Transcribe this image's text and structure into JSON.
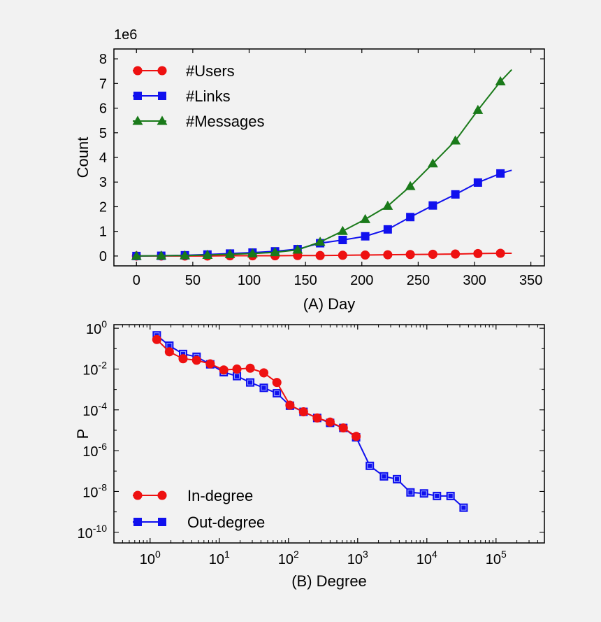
{
  "colors": {
    "background": "#f2f2f2",
    "red": "#ee1111",
    "blue": "#1010ee",
    "green": "#1a7a1a"
  },
  "chart_data": [
    {
      "type": "line",
      "panel": "A",
      "xlabel": "(A) Day",
      "ylabel": "Count",
      "offset_label": "1e6",
      "xlim": [
        -20,
        362
      ],
      "ylim": [
        -0.4,
        8.4
      ],
      "xticks": [
        0,
        50,
        100,
        150,
        200,
        250,
        300,
        350
      ],
      "yticks": [
        0,
        1,
        2,
        3,
        4,
        5,
        6,
        7,
        8
      ],
      "legend_position": "top-left",
      "series": [
        {
          "name": "#Users",
          "color": "#ee1111",
          "marker": "circle",
          "x": [
            0,
            22,
            43,
            63,
            83,
            103,
            123,
            143,
            163,
            183,
            203,
            223,
            243,
            263,
            283,
            303,
            323,
            333
          ],
          "y": [
            0,
            0,
            0,
            0,
            0.01,
            0.01,
            0.01,
            0.02,
            0.02,
            0.03,
            0.04,
            0.05,
            0.06,
            0.07,
            0.08,
            0.1,
            0.11,
            0.11
          ],
          "marker_every_point_except_last": true
        },
        {
          "name": "#Links",
          "color": "#1010ee",
          "marker": "square",
          "x": [
            0,
            22,
            43,
            63,
            83,
            103,
            123,
            143,
            163,
            183,
            203,
            223,
            243,
            263,
            283,
            303,
            323,
            333
          ],
          "y": [
            0,
            0.01,
            0.03,
            0.06,
            0.1,
            0.14,
            0.19,
            0.28,
            0.52,
            0.65,
            0.8,
            1.08,
            1.58,
            2.05,
            2.5,
            2.98,
            3.35,
            3.48
          ]
        },
        {
          "name": "#Messages",
          "color": "#1a7a1a",
          "marker": "triangle",
          "x": [
            0,
            22,
            43,
            63,
            83,
            103,
            123,
            143,
            163,
            183,
            203,
            223,
            243,
            263,
            283,
            303,
            323,
            333
          ],
          "y": [
            0,
            0.01,
            0.02,
            0.04,
            0.07,
            0.1,
            0.15,
            0.25,
            0.57,
            1.01,
            1.49,
            2.03,
            2.83,
            3.75,
            4.68,
            5.92,
            7.08,
            7.56
          ]
        }
      ]
    },
    {
      "type": "scatter",
      "panel": "B",
      "xlabel": "(B) Degree",
      "ylabel": "P",
      "xscale": "log",
      "yscale": "log",
      "xlim": [
        0.3,
        500000
      ],
      "ylim": [
        3e-11,
        1.5
      ],
      "xticks": [
        1,
        10,
        100,
        1000,
        10000,
        100000
      ],
      "xtick_exponents": [
        "0",
        "1",
        "2",
        "3",
        "4",
        "5"
      ],
      "yticks": [
        1e-10,
        1e-08,
        1e-06,
        0.0001,
        0.01,
        1
      ],
      "ytick_exponents": [
        "-10",
        "-8",
        "-6",
        "-4",
        "-2",
        "0"
      ],
      "legend_position": "bottom-left",
      "series": [
        {
          "name": "In-degree",
          "color": "#ee1111",
          "marker": "circle",
          "x": [
            1.25,
            1.9,
            3.0,
            4.7,
            7.4,
            11.6,
            18,
            28,
            44,
            68,
            105,
            165,
            260,
            400,
            620,
            950
          ],
          "y": [
            0.28,
            0.07,
            0.032,
            0.027,
            0.018,
            0.009,
            0.01,
            0.011,
            0.0065,
            0.0022,
            0.00017,
            8e-05,
            4e-05,
            2.5e-05,
            1.3e-05,
            5e-06
          ]
        },
        {
          "name": "Out-degree",
          "color": "#1010ee",
          "marker": "square",
          "x": [
            1.25,
            1.9,
            3.0,
            4.7,
            7.4,
            11.6,
            18,
            28,
            44,
            68,
            105,
            165,
            260,
            400,
            620,
            950,
            1500,
            2400,
            3700,
            5800,
            9100,
            14000,
            22000,
            34000
          ],
          "y": [
            0.45,
            0.14,
            0.055,
            0.04,
            0.017,
            0.007,
            0.0045,
            0.0022,
            0.0012,
            0.00065,
            0.00016,
            8e-05,
            4e-05,
            2.3e-05,
            1.3e-05,
            4.5e-06,
            1.8e-07,
            5.5e-08,
            4e-08,
            9e-09,
            8e-09,
            6e-09,
            6e-09,
            1.6e-09
          ]
        }
      ]
    }
  ]
}
